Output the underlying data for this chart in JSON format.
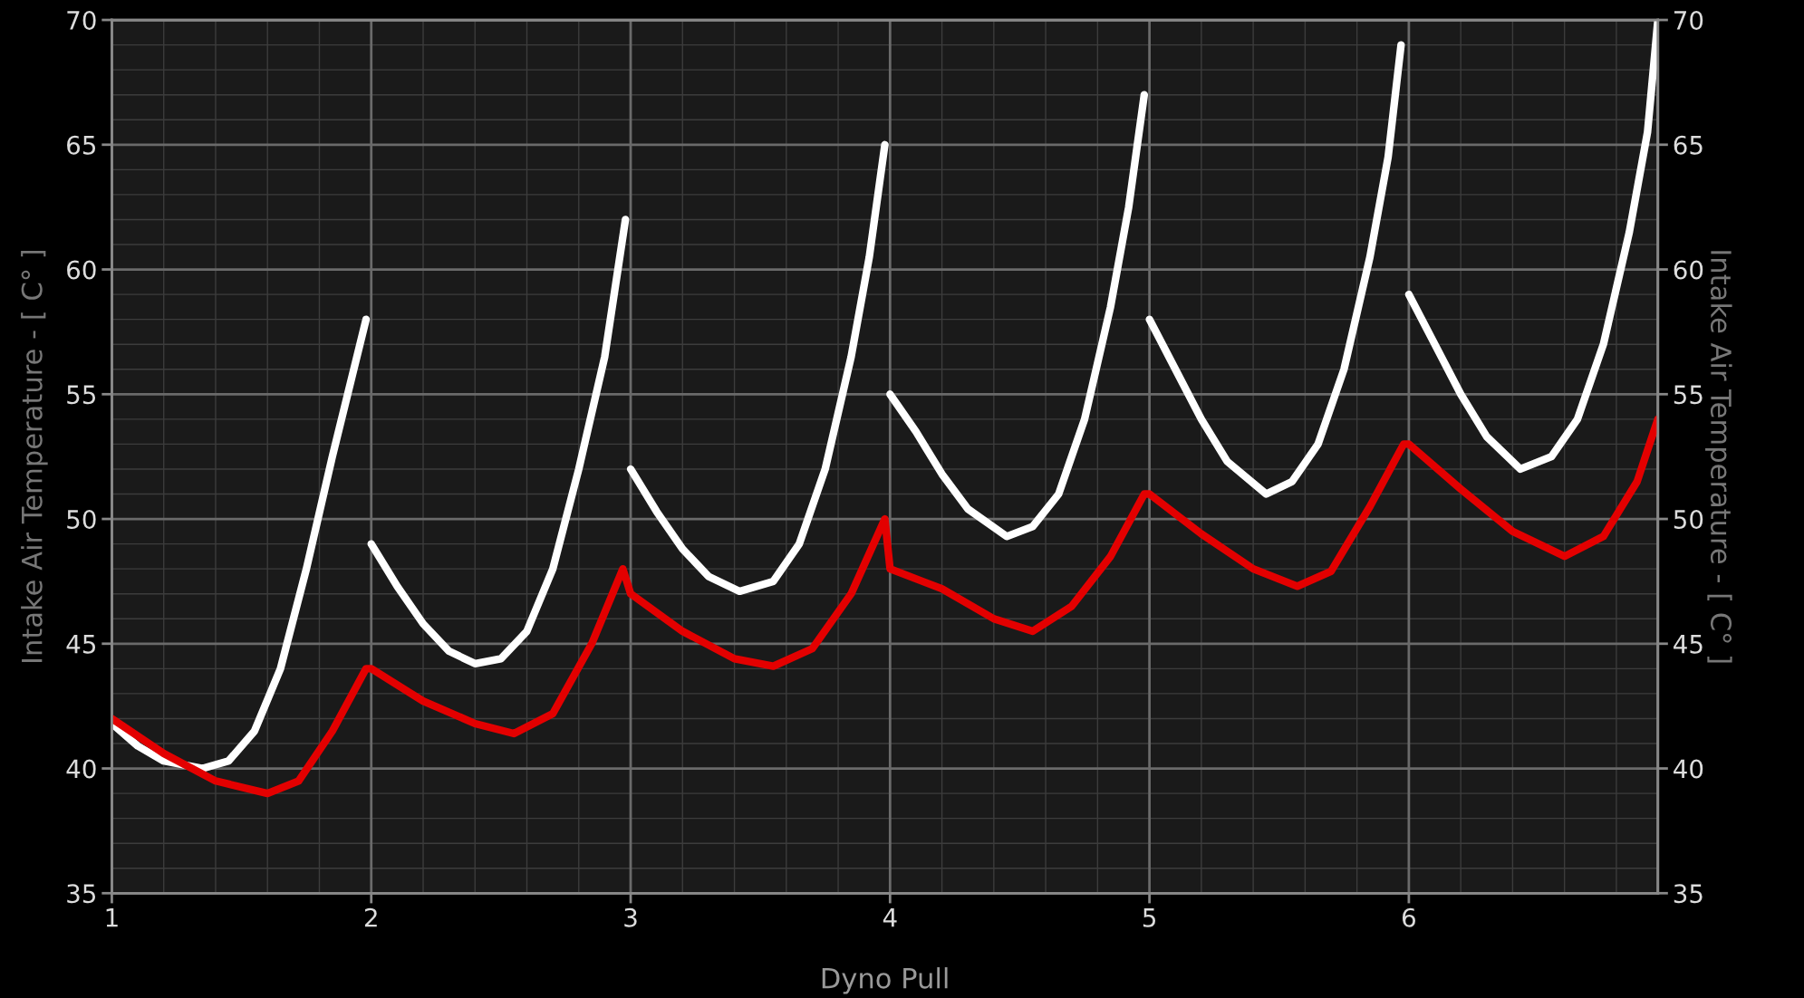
{
  "chart_data": {
    "type": "line",
    "xlabel": "Dyno Pull",
    "ylabel": "Intake Air Temperature - [ C° ]",
    "y2label": "Intake Air Temperature - [ C° ]",
    "xlim": [
      1,
      6.96
    ],
    "xticks": [
      1,
      2,
      3,
      4,
      5,
      6
    ],
    "ylim": [
      35,
      70
    ],
    "yticks": [
      35,
      40,
      45,
      50,
      55,
      60,
      65,
      70
    ],
    "y2lim": [
      35,
      70
    ],
    "y2ticks": [
      35,
      40,
      45,
      50,
      55,
      60,
      65,
      70
    ],
    "grid": true,
    "legend": false,
    "marker": "none",
    "line_style": "solid",
    "series": [
      {
        "color": "#ffffff",
        "x": [
          1.0,
          1.1,
          1.2,
          1.35,
          1.45,
          1.55,
          1.65,
          1.75,
          1.85,
          1.98,
          1.99,
          2.0,
          2.1,
          2.2,
          2.3,
          2.4,
          2.5,
          2.6,
          2.7,
          2.8,
          2.9,
          2.98,
          2.99,
          3.0,
          3.1,
          3.2,
          3.3,
          3.42,
          3.55,
          3.65,
          3.75,
          3.85,
          3.92,
          3.98,
          3.99,
          4.0,
          4.1,
          4.2,
          4.3,
          4.45,
          4.55,
          4.65,
          4.75,
          4.85,
          4.92,
          4.98,
          4.99,
          5.0,
          5.1,
          5.2,
          5.3,
          5.45,
          5.55,
          5.65,
          5.75,
          5.85,
          5.92,
          5.97,
          5.99,
          6.0,
          6.1,
          6.2,
          6.3,
          6.43,
          6.55,
          6.65,
          6.75,
          6.85,
          6.92,
          6.96
        ],
        "values": [
          41.8,
          40.9,
          40.3,
          40.0,
          40.3,
          41.5,
          44,
          48,
          52.5,
          58,
          null,
          49,
          47.3,
          45.8,
          44.7,
          44.2,
          44.4,
          45.5,
          48,
          52,
          56.5,
          62,
          null,
          52,
          50.3,
          48.8,
          47.7,
          47.1,
          47.5,
          49,
          52,
          56.5,
          60.5,
          65,
          null,
          55,
          53.5,
          51.8,
          50.4,
          49.3,
          49.7,
          51,
          54,
          58.5,
          62.5,
          67,
          null,
          58,
          56,
          54,
          52.3,
          51,
          51.5,
          53,
          56,
          60.5,
          64.5,
          69,
          null,
          59,
          57,
          55,
          53.3,
          52,
          52.5,
          54,
          57,
          61.5,
          65.5,
          70
        ]
      },
      {
        "color": "#e30000",
        "x": [
          1.0,
          1.2,
          1.4,
          1.6,
          1.72,
          1.85,
          1.98,
          2.0,
          2.2,
          2.4,
          2.55,
          2.7,
          2.85,
          2.97,
          3.0,
          3.2,
          3.4,
          3.55,
          3.7,
          3.85,
          3.98,
          4.0,
          4.2,
          4.4,
          4.55,
          4.7,
          4.85,
          4.98,
          5.0,
          5.2,
          5.4,
          5.57,
          5.7,
          5.85,
          5.98,
          6.0,
          6.2,
          6.4,
          6.6,
          6.75,
          6.88,
          6.96
        ],
        "values": [
          42,
          40.6,
          39.5,
          39.0,
          39.5,
          41.5,
          44,
          44,
          42.7,
          41.8,
          41.4,
          42.2,
          45,
          48,
          47,
          45.5,
          44.4,
          44.1,
          44.8,
          47,
          50,
          48,
          47.2,
          46,
          45.5,
          46.5,
          48.5,
          51,
          51,
          49.4,
          48,
          47.3,
          47.9,
          50.5,
          53,
          53,
          51.2,
          49.5,
          48.5,
          49.3,
          51.5,
          54
        ]
      }
    ]
  }
}
